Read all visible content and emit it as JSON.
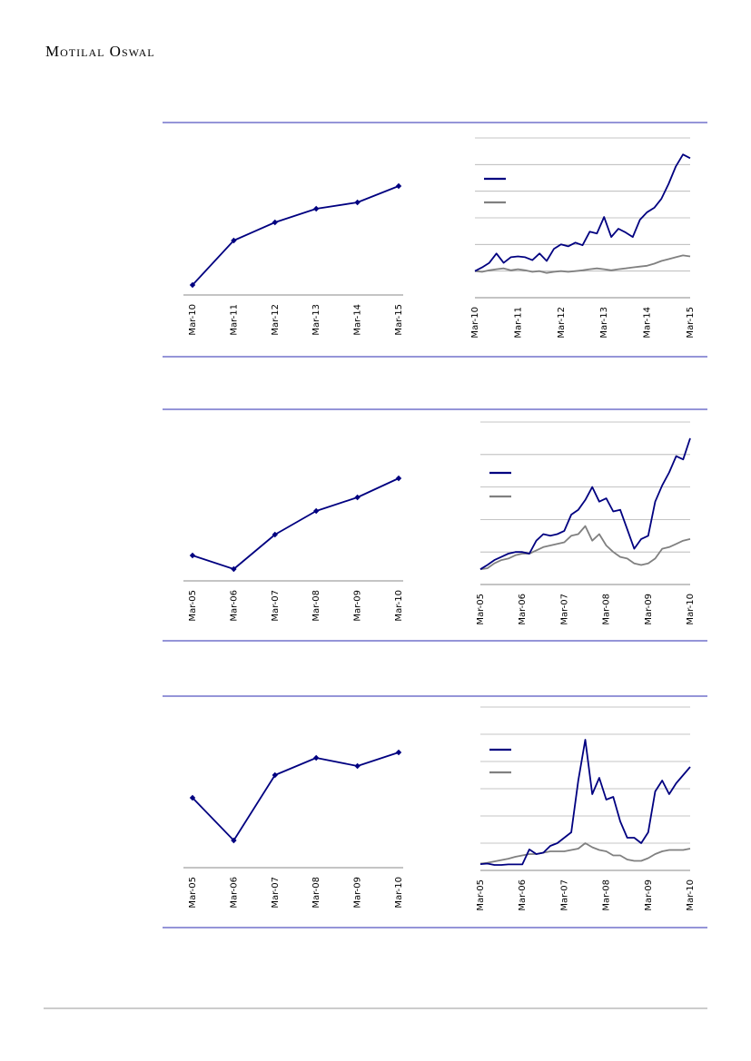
{
  "header": {
    "brand": "Motilal Oswal"
  },
  "chart_data": [
    {
      "type": "line",
      "marker": "diamond",
      "categories": [
        "Mar-10",
        "Mar-11",
        "Mar-12",
        "Mar-13",
        "Mar-14",
        "Mar-15"
      ],
      "values": [
        1.1,
        6.0,
        8.0,
        9.5,
        10.2,
        12.0
      ],
      "color": "#000080",
      "ylim": [
        0,
        13
      ],
      "grid": false
    },
    {
      "type": "line",
      "grid": true,
      "ylim": [
        0,
        6
      ],
      "yticks": [
        0,
        1,
        2,
        3,
        4,
        5,
        6
      ],
      "categories": [
        "Mar-10",
        null,
        null,
        null,
        null,
        null,
        "Mar-11",
        null,
        null,
        null,
        null,
        null,
        "Mar-12",
        null,
        null,
        null,
        null,
        null,
        "Mar-13",
        null,
        null,
        null,
        null,
        null,
        "Mar-14",
        null,
        null,
        null,
        null,
        null,
        "Mar-15"
      ],
      "series": [
        {
          "color": "#000080",
          "values": [
            1.0,
            1.14,
            1.31,
            1.66,
            1.31,
            1.52,
            1.55,
            1.52,
            1.41,
            1.66,
            1.38,
            1.83,
            2.0,
            1.93,
            2.07,
            1.97,
            2.48,
            2.41,
            3.03,
            2.28,
            2.59,
            2.45,
            2.28,
            2.93,
            3.21,
            3.38,
            3.72,
            4.28,
            4.93,
            5.38,
            5.24
          ]
        },
        {
          "color": "#808080",
          "values": [
            1.0,
            0.97,
            1.03,
            1.07,
            1.1,
            1.03,
            1.07,
            1.03,
            0.97,
            1.0,
            0.93,
            0.97,
            1.0,
            0.97,
            1.0,
            1.03,
            1.07,
            1.1,
            1.07,
            1.03,
            1.07,
            1.1,
            1.14,
            1.17,
            1.2,
            1.28,
            1.38,
            1.45,
            1.52,
            1.59,
            1.55
          ]
        }
      ]
    },
    {
      "type": "line",
      "marker": "diamond",
      "categories": [
        "Mar-05",
        "Mar-06",
        "Mar-07",
        "Mar-08",
        "Mar-09",
        "Mar-10"
      ],
      "values": [
        2.8,
        1.3,
        5.1,
        7.7,
        9.2,
        11.3
      ],
      "color": "#000080",
      "ylim": [
        0,
        13
      ],
      "grid": false
    },
    {
      "type": "line",
      "grid": true,
      "ylim": [
        0,
        5
      ],
      "yticks": [
        0,
        1,
        2,
        3,
        4,
        5
      ],
      "categories": [
        "Mar-05",
        null,
        null,
        null,
        null,
        null,
        "Mar-06",
        null,
        null,
        null,
        null,
        null,
        "Mar-07",
        null,
        null,
        null,
        null,
        null,
        "Mar-08",
        null,
        null,
        null,
        null,
        null,
        "Mar-09",
        null,
        null,
        null,
        null,
        null,
        "Mar-10"
      ],
      "series": [
        {
          "color": "#000080",
          "values": [
            0.47,
            0.6,
            0.75,
            0.85,
            0.95,
            1.0,
            1.0,
            0.95,
            1.35,
            1.55,
            1.5,
            1.55,
            1.65,
            2.15,
            2.3,
            2.6,
            3.0,
            2.55,
            2.65,
            2.25,
            2.3,
            1.7,
            1.1,
            1.4,
            1.5,
            2.55,
            3.05,
            3.45,
            3.95,
            3.85,
            4.5
          ]
        },
        {
          "color": "#808080",
          "values": [
            0.47,
            0.5,
            0.65,
            0.75,
            0.8,
            0.9,
            0.95,
            0.95,
            1.05,
            1.15,
            1.2,
            1.25,
            1.3,
            1.5,
            1.55,
            1.8,
            1.35,
            1.55,
            1.2,
            1.0,
            0.85,
            0.8,
            0.65,
            0.6,
            0.65,
            0.8,
            1.1,
            1.15,
            1.25,
            1.35,
            1.4
          ]
        }
      ]
    },
    {
      "type": "line",
      "marker": "diamond",
      "categories": [
        "Mar-05",
        "Mar-06",
        "Mar-07",
        "Mar-08",
        "Mar-09",
        "Mar-10"
      ],
      "values": [
        7.7,
        3.0,
        10.2,
        12.1,
        11.2,
        12.7
      ],
      "color": "#000080",
      "ylim": [
        0,
        14
      ],
      "grid": false
    },
    {
      "type": "line",
      "grid": true,
      "ylim": [
        0,
        6
      ],
      "yticks": [
        0,
        1,
        2,
        3,
        4,
        5,
        6
      ],
      "categories": [
        "Mar-05",
        null,
        null,
        null,
        null,
        null,
        "Mar-06",
        null,
        null,
        null,
        null,
        null,
        "Mar-07",
        null,
        null,
        null,
        null,
        null,
        "Mar-08",
        null,
        null,
        null,
        null,
        null,
        "Mar-09",
        null,
        null,
        null,
        null,
        null,
        "Mar-10"
      ],
      "series": [
        {
          "color": "#000080",
          "values": [
            0.23,
            0.25,
            0.2,
            0.2,
            0.22,
            0.22,
            0.22,
            0.77,
            0.6,
            0.65,
            0.9,
            1.0,
            1.2,
            1.4,
            3.3,
            4.8,
            2.8,
            3.4,
            2.6,
            2.7,
            1.8,
            1.2,
            1.2,
            1.0,
            1.4,
            2.9,
            3.3,
            2.8,
            3.2,
            3.5,
            3.8
          ]
        },
        {
          "color": "#808080",
          "values": [
            0.25,
            0.28,
            0.33,
            0.38,
            0.43,
            0.5,
            0.55,
            0.6,
            0.6,
            0.65,
            0.7,
            0.7,
            0.7,
            0.75,
            0.8,
            1.0,
            0.85,
            0.75,
            0.7,
            0.55,
            0.55,
            0.4,
            0.35,
            0.35,
            0.45,
            0.6,
            0.7,
            0.75,
            0.75,
            0.75,
            0.8
          ]
        }
      ]
    }
  ]
}
